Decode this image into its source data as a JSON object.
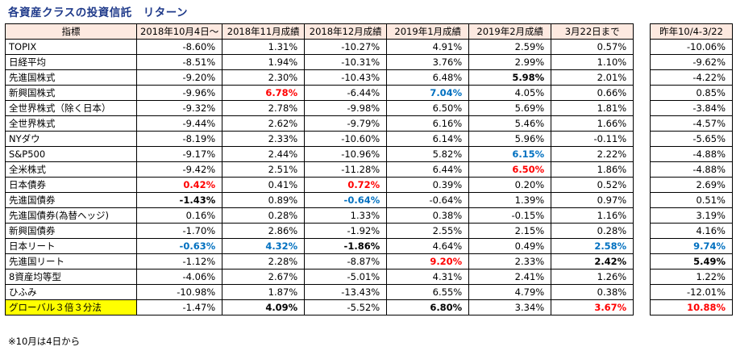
{
  "title": "各資産クラスの投資信託　リターン",
  "headers": [
    "指標",
    "2018年10月4日～",
    "2018年11月成績",
    "2018年12月成績",
    "2019年1月成績",
    "2019年2月成績",
    "3月22日まで"
  ],
  "side_header": "昨年10/4-3/22",
  "rows": [
    {
      "name": "TOPIX",
      "cells": [
        {
          "v": "-8.60%"
        },
        {
          "v": "1.31%"
        },
        {
          "v": "-10.27%"
        },
        {
          "v": "4.91%"
        },
        {
          "v": "2.59%"
        },
        {
          "v": "0.57%"
        }
      ],
      "side": {
        "v": "-10.06%"
      }
    },
    {
      "name": "日経平均",
      "cells": [
        {
          "v": "-8.51%"
        },
        {
          "v": "1.94%"
        },
        {
          "v": "-10.31%"
        },
        {
          "v": "3.76%"
        },
        {
          "v": "2.99%"
        },
        {
          "v": "1.10%"
        }
      ],
      "side": {
        "v": "-9.62%"
      }
    },
    {
      "name": "先進国株式",
      "cells": [
        {
          "v": "-9.20%"
        },
        {
          "v": "2.30%"
        },
        {
          "v": "-10.43%"
        },
        {
          "v": "6.48%"
        },
        {
          "v": "5.98%",
          "s": "b"
        },
        {
          "v": "2.01%"
        }
      ],
      "side": {
        "v": "-4.22%"
      }
    },
    {
      "name": "新興国株式",
      "cells": [
        {
          "v": "-9.96%"
        },
        {
          "v": "6.78%",
          "s": "red"
        },
        {
          "v": "-6.44%"
        },
        {
          "v": "7.04%",
          "s": "blue"
        },
        {
          "v": "4.05%"
        },
        {
          "v": "0.66%"
        }
      ],
      "side": {
        "v": "0.85%"
      }
    },
    {
      "name": "全世界株式（除く日本）",
      "cells": [
        {
          "v": "-9.32%"
        },
        {
          "v": "2.78%"
        },
        {
          "v": "-9.98%"
        },
        {
          "v": "6.50%"
        },
        {
          "v": "5.69%"
        },
        {
          "v": "1.81%"
        }
      ],
      "side": {
        "v": "-3.84%"
      }
    },
    {
      "name": "全世界株式",
      "cells": [
        {
          "v": "-9.44%"
        },
        {
          "v": "2.62%"
        },
        {
          "v": "-9.79%"
        },
        {
          "v": "6.16%"
        },
        {
          "v": "5.46%"
        },
        {
          "v": "1.66%"
        }
      ],
      "side": {
        "v": "-4.57%"
      }
    },
    {
      "name": "NYダウ",
      "cells": [
        {
          "v": "-8.19%"
        },
        {
          "v": "2.33%"
        },
        {
          "v": "-10.60%"
        },
        {
          "v": "6.14%"
        },
        {
          "v": "5.96%"
        },
        {
          "v": "-0.11%"
        }
      ],
      "side": {
        "v": "-5.65%"
      }
    },
    {
      "name": "S&P500",
      "cells": [
        {
          "v": "-9.17%"
        },
        {
          "v": "2.44%"
        },
        {
          "v": "-10.96%"
        },
        {
          "v": "5.82%"
        },
        {
          "v": "6.15%",
          "s": "blue"
        },
        {
          "v": "2.22%"
        }
      ],
      "side": {
        "v": "-4.88%"
      }
    },
    {
      "name": "全米株式",
      "cells": [
        {
          "v": "-9.42%"
        },
        {
          "v": "2.51%"
        },
        {
          "v": "-11.28%"
        },
        {
          "v": "6.44%"
        },
        {
          "v": "6.50%",
          "s": "red"
        },
        {
          "v": "1.86%"
        }
      ],
      "side": {
        "v": "-4.88%"
      }
    },
    {
      "name": "日本債券",
      "cells": [
        {
          "v": "0.42%",
          "s": "red"
        },
        {
          "v": "0.41%"
        },
        {
          "v": "0.72%",
          "s": "red"
        },
        {
          "v": "0.39%"
        },
        {
          "v": "0.20%"
        },
        {
          "v": "0.52%"
        }
      ],
      "side": {
        "v": "2.69%"
      }
    },
    {
      "name": "先進国債券",
      "cells": [
        {
          "v": "-1.43%",
          "s": "b"
        },
        {
          "v": "0.89%"
        },
        {
          "v": "-0.64%",
          "s": "blue"
        },
        {
          "v": "-0.64%"
        },
        {
          "v": "1.39%"
        },
        {
          "v": "0.97%"
        }
      ],
      "side": {
        "v": "0.51%"
      }
    },
    {
      "name": "先進国債券(為替ヘッジ)",
      "cells": [
        {
          "v": "0.16%"
        },
        {
          "v": "0.28%"
        },
        {
          "v": "1.33%"
        },
        {
          "v": "0.38%"
        },
        {
          "v": "-0.15%"
        },
        {
          "v": "1.16%"
        }
      ],
      "side": {
        "v": "3.19%"
      }
    },
    {
      "name": "新興国債券",
      "cells": [
        {
          "v": "-1.70%"
        },
        {
          "v": "2.86%"
        },
        {
          "v": "-1.92%"
        },
        {
          "v": "2.55%"
        },
        {
          "v": "2.15%"
        },
        {
          "v": "0.28%"
        }
      ],
      "side": {
        "v": "4.16%"
      }
    },
    {
      "name": "日本リート",
      "cells": [
        {
          "v": "-0.63%",
          "s": "blue"
        },
        {
          "v": "4.32%",
          "s": "blue"
        },
        {
          "v": "-1.86%",
          "s": "b"
        },
        {
          "v": "4.64%"
        },
        {
          "v": "0.49%"
        },
        {
          "v": "2.58%",
          "s": "blue"
        }
      ],
      "side": {
        "v": "9.74%",
        "s": "blue"
      }
    },
    {
      "name": "先進国リート",
      "cells": [
        {
          "v": "-1.12%"
        },
        {
          "v": "2.28%"
        },
        {
          "v": "-8.87%"
        },
        {
          "v": "9.20%",
          "s": "red"
        },
        {
          "v": "2.33%"
        },
        {
          "v": "2.42%",
          "s": "b"
        }
      ],
      "side": {
        "v": "5.49%",
        "s": "b"
      }
    },
    {
      "name": "8資産均等型",
      "cells": [
        {
          "v": "-4.06%"
        },
        {
          "v": "2.67%"
        },
        {
          "v": "-5.01%"
        },
        {
          "v": "4.31%"
        },
        {
          "v": "2.41%"
        },
        {
          "v": "1.26%"
        }
      ],
      "side": {
        "v": "1.22%"
      }
    },
    {
      "name": "ひふみ",
      "cells": [
        {
          "v": "-10.98%"
        },
        {
          "v": "1.87%"
        },
        {
          "v": "-13.43%"
        },
        {
          "v": "6.55%"
        },
        {
          "v": "4.79%"
        },
        {
          "v": "0.38%"
        }
      ],
      "side": {
        "v": "-12.01%"
      }
    },
    {
      "name": "グローバル３倍３分法",
      "highlight": true,
      "cells": [
        {
          "v": "-1.47%"
        },
        {
          "v": "4.09%",
          "s": "b"
        },
        {
          "v": "-5.52%"
        },
        {
          "v": "6.80%",
          "s": "b"
        },
        {
          "v": "3.34%"
        },
        {
          "v": "3.67%",
          "s": "red"
        }
      ],
      "side": {
        "v": "10.88%",
        "s": "red"
      }
    }
  ],
  "colors": {
    "header_bg": "#fde9e0",
    "highlight_bg": "#ffff00",
    "red": "#ff0000",
    "blue": "#0070c0",
    "title": "#1f3a8a"
  },
  "footnote": "※10月は4日から"
}
